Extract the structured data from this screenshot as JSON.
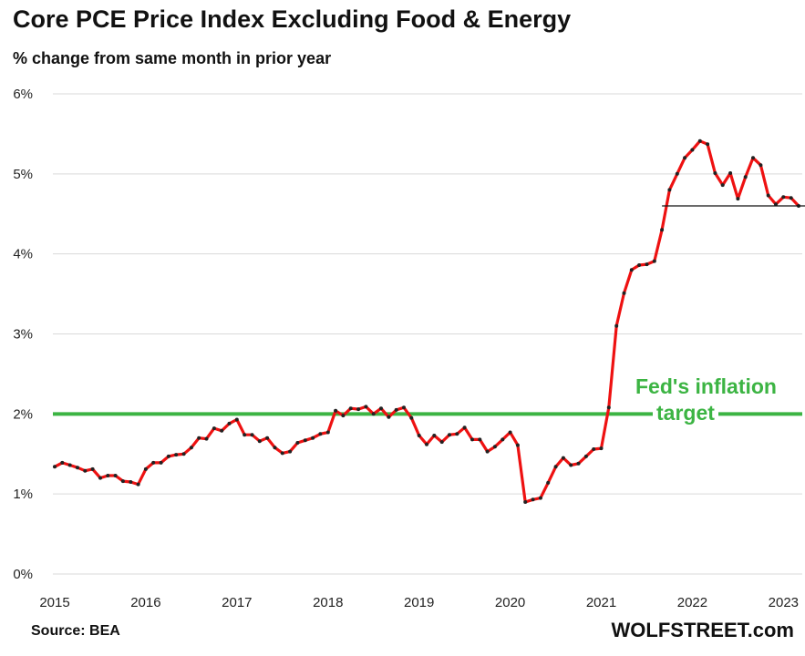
{
  "header": {
    "title": "Core PCE Price Index Excluding Food & Energy",
    "subtitle": "% change from same month in prior year"
  },
  "footer": {
    "source": "Source: BEA",
    "brand": "WOLFSTREET.com"
  },
  "annotation": {
    "line1": "Fed's inflation",
    "line2": "target"
  },
  "colors": {
    "series": "#ee1111",
    "marker": "#222222",
    "target": "#3cb443",
    "grid": "#d9d9d9"
  },
  "chart_data": {
    "type": "line",
    "title": "Core PCE Price Index Excluding Food & Energy",
    "subtitle": "% change from same month in prior year",
    "xlabel": "",
    "ylabel": "",
    "ylim": [
      0,
      6
    ],
    "yticks": [
      "0%",
      "1%",
      "2%",
      "3%",
      "4%",
      "5%",
      "6%"
    ],
    "xticks": [
      "2015",
      "2016",
      "2017",
      "2018",
      "2019",
      "2020",
      "2021",
      "2022",
      "2023"
    ],
    "grid": true,
    "target_line": {
      "value": 2.0,
      "label": "Fed's inflation target"
    },
    "reference_line": {
      "value": 4.6,
      "from": "2021-09",
      "to": "2023-04"
    },
    "series": [
      {
        "name": "Core PCE YoY %",
        "start": "2015-01",
        "frequency": "monthly",
        "values": [
          1.34,
          1.39,
          1.36,
          1.33,
          1.29,
          1.31,
          1.2,
          1.23,
          1.23,
          1.16,
          1.15,
          1.12,
          1.31,
          1.39,
          1.39,
          1.47,
          1.49,
          1.5,
          1.58,
          1.7,
          1.69,
          1.82,
          1.79,
          1.88,
          1.93,
          1.74,
          1.74,
          1.66,
          1.7,
          1.58,
          1.51,
          1.53,
          1.64,
          1.67,
          1.7,
          1.75,
          1.77,
          2.04,
          1.98,
          2.07,
          2.06,
          2.09,
          2.0,
          2.07,
          1.96,
          2.05,
          2.08,
          1.95,
          1.73,
          1.62,
          1.73,
          1.65,
          1.74,
          1.75,
          1.83,
          1.68,
          1.68,
          1.53,
          1.59,
          1.68,
          1.77,
          1.61,
          0.9,
          0.93,
          0.95,
          1.14,
          1.34,
          1.45,
          1.36,
          1.38,
          1.47,
          1.56,
          1.57,
          2.08,
          3.1,
          3.51,
          3.8,
          3.86,
          3.87,
          3.91,
          4.3,
          4.8,
          5.0,
          5.2,
          5.3,
          5.41,
          5.37,
          5.01,
          4.86,
          5.01,
          4.69,
          4.96,
          5.2,
          5.11,
          4.73,
          4.62,
          4.71,
          4.7,
          4.6
        ]
      }
    ]
  }
}
